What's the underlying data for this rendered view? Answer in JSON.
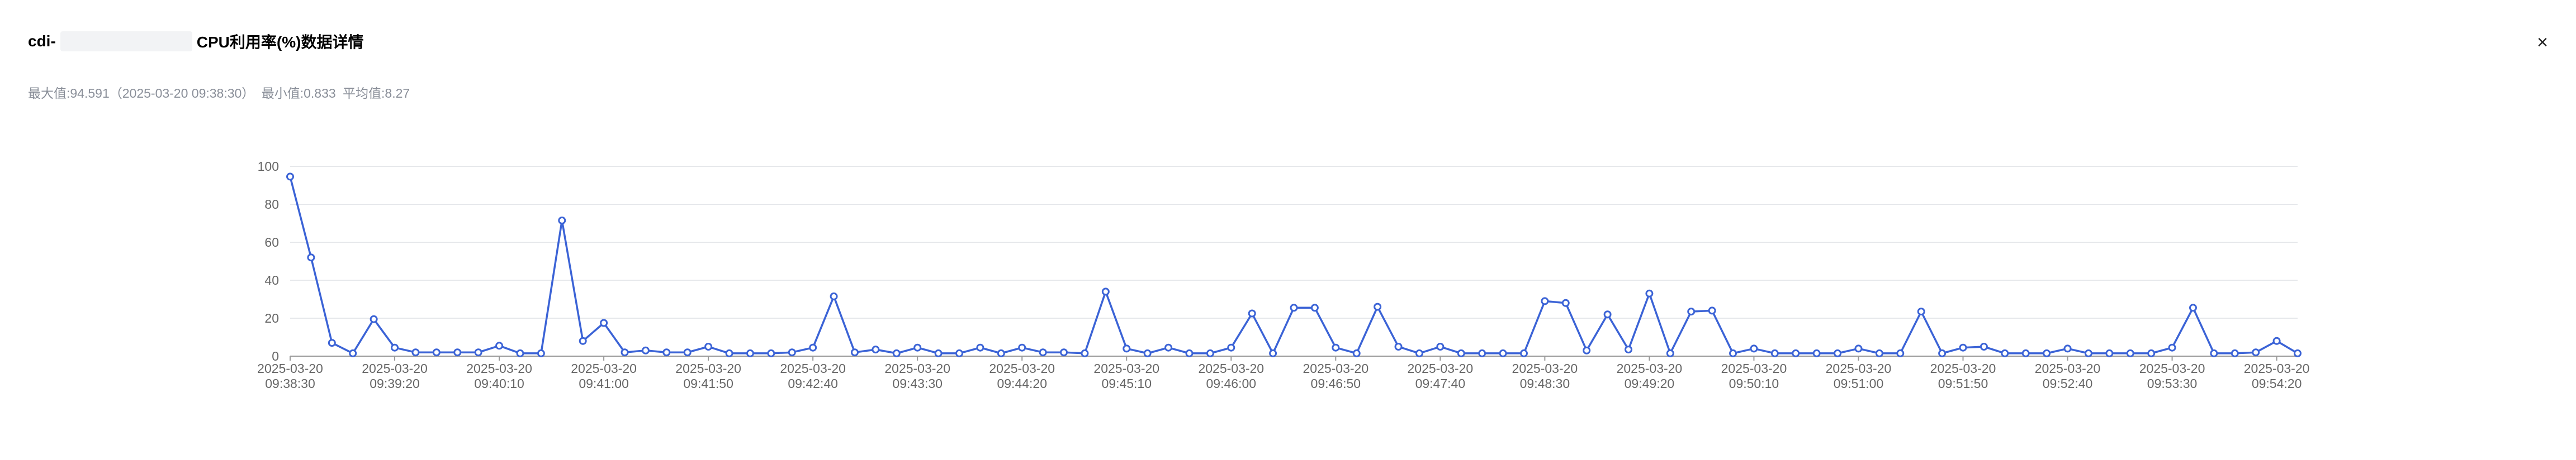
{
  "header": {
    "title_prefix": "cdi-",
    "title_suffix": "CPU利用率(%)数据详情",
    "close_glyph": "×"
  },
  "summary": {
    "max_label": "最大值:94.591（2025-03-20 09:38:30）",
    "min_label": "最小值:0.833",
    "avg_label": "平均值:8.27"
  },
  "chart_data": {
    "type": "line",
    "title": "",
    "xlabel": "",
    "ylabel": "",
    "ylim": [
      0,
      100
    ],
    "yticks": [
      0,
      20,
      40,
      60,
      80,
      100
    ],
    "grid": true,
    "line_color": "#3b63d6",
    "xtick_labels": [
      [
        "2025-03-20",
        "09:38:30"
      ],
      [
        "2025-03-20",
        "09:39:20"
      ],
      [
        "2025-03-20",
        "09:40:10"
      ],
      [
        "2025-03-20",
        "09:41:00"
      ],
      [
        "2025-03-20",
        "09:41:50"
      ],
      [
        "2025-03-20",
        "09:42:40"
      ],
      [
        "2025-03-20",
        "09:43:30"
      ],
      [
        "2025-03-20",
        "09:44:20"
      ],
      [
        "2025-03-20",
        "09:45:10"
      ],
      [
        "2025-03-20",
        "09:46:00"
      ],
      [
        "2025-03-20",
        "09:46:50"
      ],
      [
        "2025-03-20",
        "09:47:40"
      ],
      [
        "2025-03-20",
        "09:48:30"
      ],
      [
        "2025-03-20",
        "09:49:20"
      ],
      [
        "2025-03-20",
        "09:50:10"
      ],
      [
        "2025-03-20",
        "09:51:00"
      ],
      [
        "2025-03-20",
        "09:51:50"
      ],
      [
        "2025-03-20",
        "09:52:40"
      ],
      [
        "2025-03-20",
        "09:53:30"
      ],
      [
        "2025-03-20",
        "09:54:20"
      ]
    ],
    "series": [
      {
        "values": [
          94.6,
          52,
          7,
          1.5,
          19.5,
          4.5,
          2,
          2,
          2,
          2,
          5.5,
          1.5,
          1.5,
          71.5,
          8,
          17.5,
          2,
          3,
          2,
          2,
          5,
          1.5,
          1.5,
          1.5,
          2,
          4.5,
          31.5,
          2,
          3.5,
          1.5,
          4.5,
          1.5,
          1.5,
          4.5,
          1.5,
          4.5,
          2,
          2,
          1.5,
          34,
          4,
          1.5,
          4.5,
          1.5,
          1.5,
          4.5,
          22.5,
          1.5,
          25.5,
          25.5,
          4.5,
          1.5,
          26,
          5,
          1.5,
          5,
          1.5,
          1.5,
          1.5,
          1.5,
          29,
          28,
          3,
          22,
          3.5,
          33,
          1.5,
          23.5,
          24,
          1.5,
          4,
          1.5,
          1.5,
          1.5,
          1.5,
          4,
          1.5,
          1.5,
          23.5,
          1.5,
          4.5,
          5,
          1.5,
          1.5,
          1.5,
          4,
          1.5,
          1.5,
          1.5,
          1.5,
          4.5,
          25.5,
          1.5,
          1.5,
          2,
          8,
          1.5
        ]
      }
    ]
  }
}
